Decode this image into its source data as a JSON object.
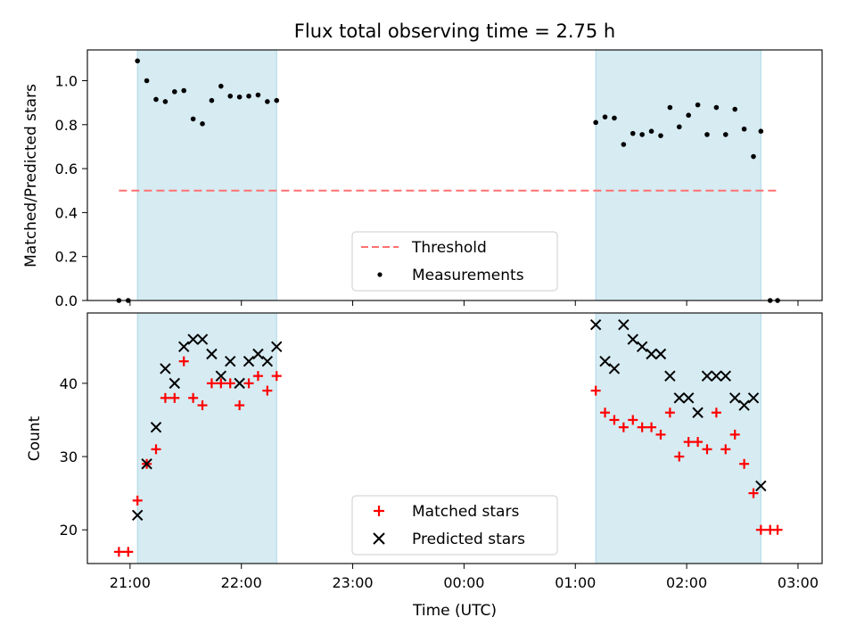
{
  "chart_data": [
    {
      "type": "scatter",
      "title": "Flux total observing time = 2.75 h",
      "ylabel": "Matched/Predicted stars",
      "xlabel": "",
      "xlim": [
        "20:37",
        "03:13"
      ],
      "ylim": [
        0,
        1.14
      ],
      "grid": false,
      "legend": "lower-center",
      "x_ticks": [
        "21:00",
        "22:00",
        "23:00",
        "00:00",
        "01:00",
        "02:00",
        "03:00"
      ],
      "y_ticks": [
        "0.0",
        "0.2",
        "0.4",
        "0.6",
        "0.8",
        "1.0"
      ],
      "observing_windows": [
        [
          "21:04",
          "22:19"
        ],
        [
          "01:11",
          "02:40"
        ]
      ],
      "threshold_line": {
        "name": "Threshold",
        "y": 0.5,
        "x_range": [
          "20:54",
          "02:49"
        ],
        "color": "#ff7070"
      },
      "series": [
        {
          "name": "Measurements",
          "marker": "dot",
          "color": "#000000",
          "x": [
            "20:54",
            "20:59",
            "21:04",
            "21:09",
            "21:14",
            "21:19",
            "21:24",
            "21:29",
            "21:34",
            "21:39",
            "21:44",
            "21:49",
            "21:54",
            "21:59",
            "22:04",
            "22:09",
            "22:14",
            "22:19",
            "01:11",
            "01:16",
            "01:21",
            "01:26",
            "01:31",
            "01:36",
            "01:41",
            "01:46",
            "01:51",
            "01:56",
            "02:01",
            "02:06",
            "02:11",
            "02:16",
            "02:21",
            "02:26",
            "02:31",
            "02:36",
            "02:40",
            "02:45",
            "02:49"
          ],
          "y": [
            0.0,
            0.0,
            1.09,
            1.0,
            0.915,
            0.905,
            0.95,
            0.955,
            0.826,
            0.804,
            0.91,
            0.975,
            0.93,
            0.926,
            0.93,
            0.935,
            0.905,
            0.91,
            0.81,
            0.835,
            0.83,
            0.71,
            0.76,
            0.755,
            0.77,
            0.75,
            0.878,
            0.79,
            0.843,
            0.89,
            0.755,
            0.878,
            0.755,
            0.87,
            0.78,
            0.655,
            0.77,
            0.0,
            0.0
          ]
        }
      ]
    },
    {
      "type": "scatter",
      "title": "",
      "ylabel": "Count",
      "xlabel": "Time (UTC)",
      "xlim": [
        "20:37",
        "03:13"
      ],
      "ylim": [
        15.4,
        49.6
      ],
      "grid": false,
      "legend": "lower-center",
      "x_ticks": [
        "21:00",
        "22:00",
        "23:00",
        "00:00",
        "01:00",
        "02:00",
        "03:00"
      ],
      "y_ticks": [
        "20",
        "30",
        "40"
      ],
      "observing_windows": [
        [
          "21:04",
          "22:19"
        ],
        [
          "01:11",
          "02:40"
        ]
      ],
      "series": [
        {
          "name": "Matched stars",
          "marker": "plus",
          "color": "#ff0000",
          "x": [
            "20:54",
            "20:59",
            "21:04",
            "21:09",
            "21:14",
            "21:19",
            "21:24",
            "21:29",
            "21:34",
            "21:39",
            "21:44",
            "21:49",
            "21:54",
            "21:59",
            "22:04",
            "22:09",
            "22:14",
            "22:19",
            "01:11",
            "01:16",
            "01:21",
            "01:26",
            "01:31",
            "01:36",
            "01:41",
            "01:46",
            "01:51",
            "01:56",
            "02:01",
            "02:06",
            "02:11",
            "02:16",
            "02:21",
            "02:26",
            "02:31",
            "02:36",
            "02:40",
            "02:45",
            "02:49"
          ],
          "y": [
            17,
            17,
            24,
            29,
            31,
            38,
            38,
            43,
            38,
            37,
            40,
            40,
            40,
            37,
            40,
            41,
            39,
            41,
            39,
            36,
            35,
            34,
            35,
            34,
            34,
            33,
            36,
            30,
            32,
            32,
            31,
            36,
            31,
            33,
            29,
            25,
            20,
            20,
            20
          ]
        },
        {
          "name": "Predicted stars",
          "marker": "x",
          "color": "#000000",
          "x": [
            "21:04",
            "21:09",
            "21:14",
            "21:19",
            "21:24",
            "21:29",
            "21:34",
            "21:39",
            "21:44",
            "21:49",
            "21:54",
            "21:59",
            "22:04",
            "22:09",
            "22:14",
            "22:19",
            "01:11",
            "01:16",
            "01:21",
            "01:26",
            "01:31",
            "01:36",
            "01:41",
            "01:46",
            "01:51",
            "01:56",
            "02:01",
            "02:06",
            "02:11",
            "02:16",
            "02:21",
            "02:26",
            "02:31",
            "02:36",
            "02:40"
          ],
          "y": [
            22,
            29,
            34,
            42,
            40,
            45,
            46,
            46,
            44,
            41,
            43,
            40,
            43,
            44,
            43,
            45,
            48,
            43,
            42,
            48,
            46,
            45,
            44,
            44,
            41,
            38,
            38,
            36,
            41,
            41,
            41,
            38,
            37,
            38,
            26
          ]
        }
      ]
    }
  ],
  "colors": {
    "window_fill": "#add8e6",
    "axes": "#000000"
  }
}
